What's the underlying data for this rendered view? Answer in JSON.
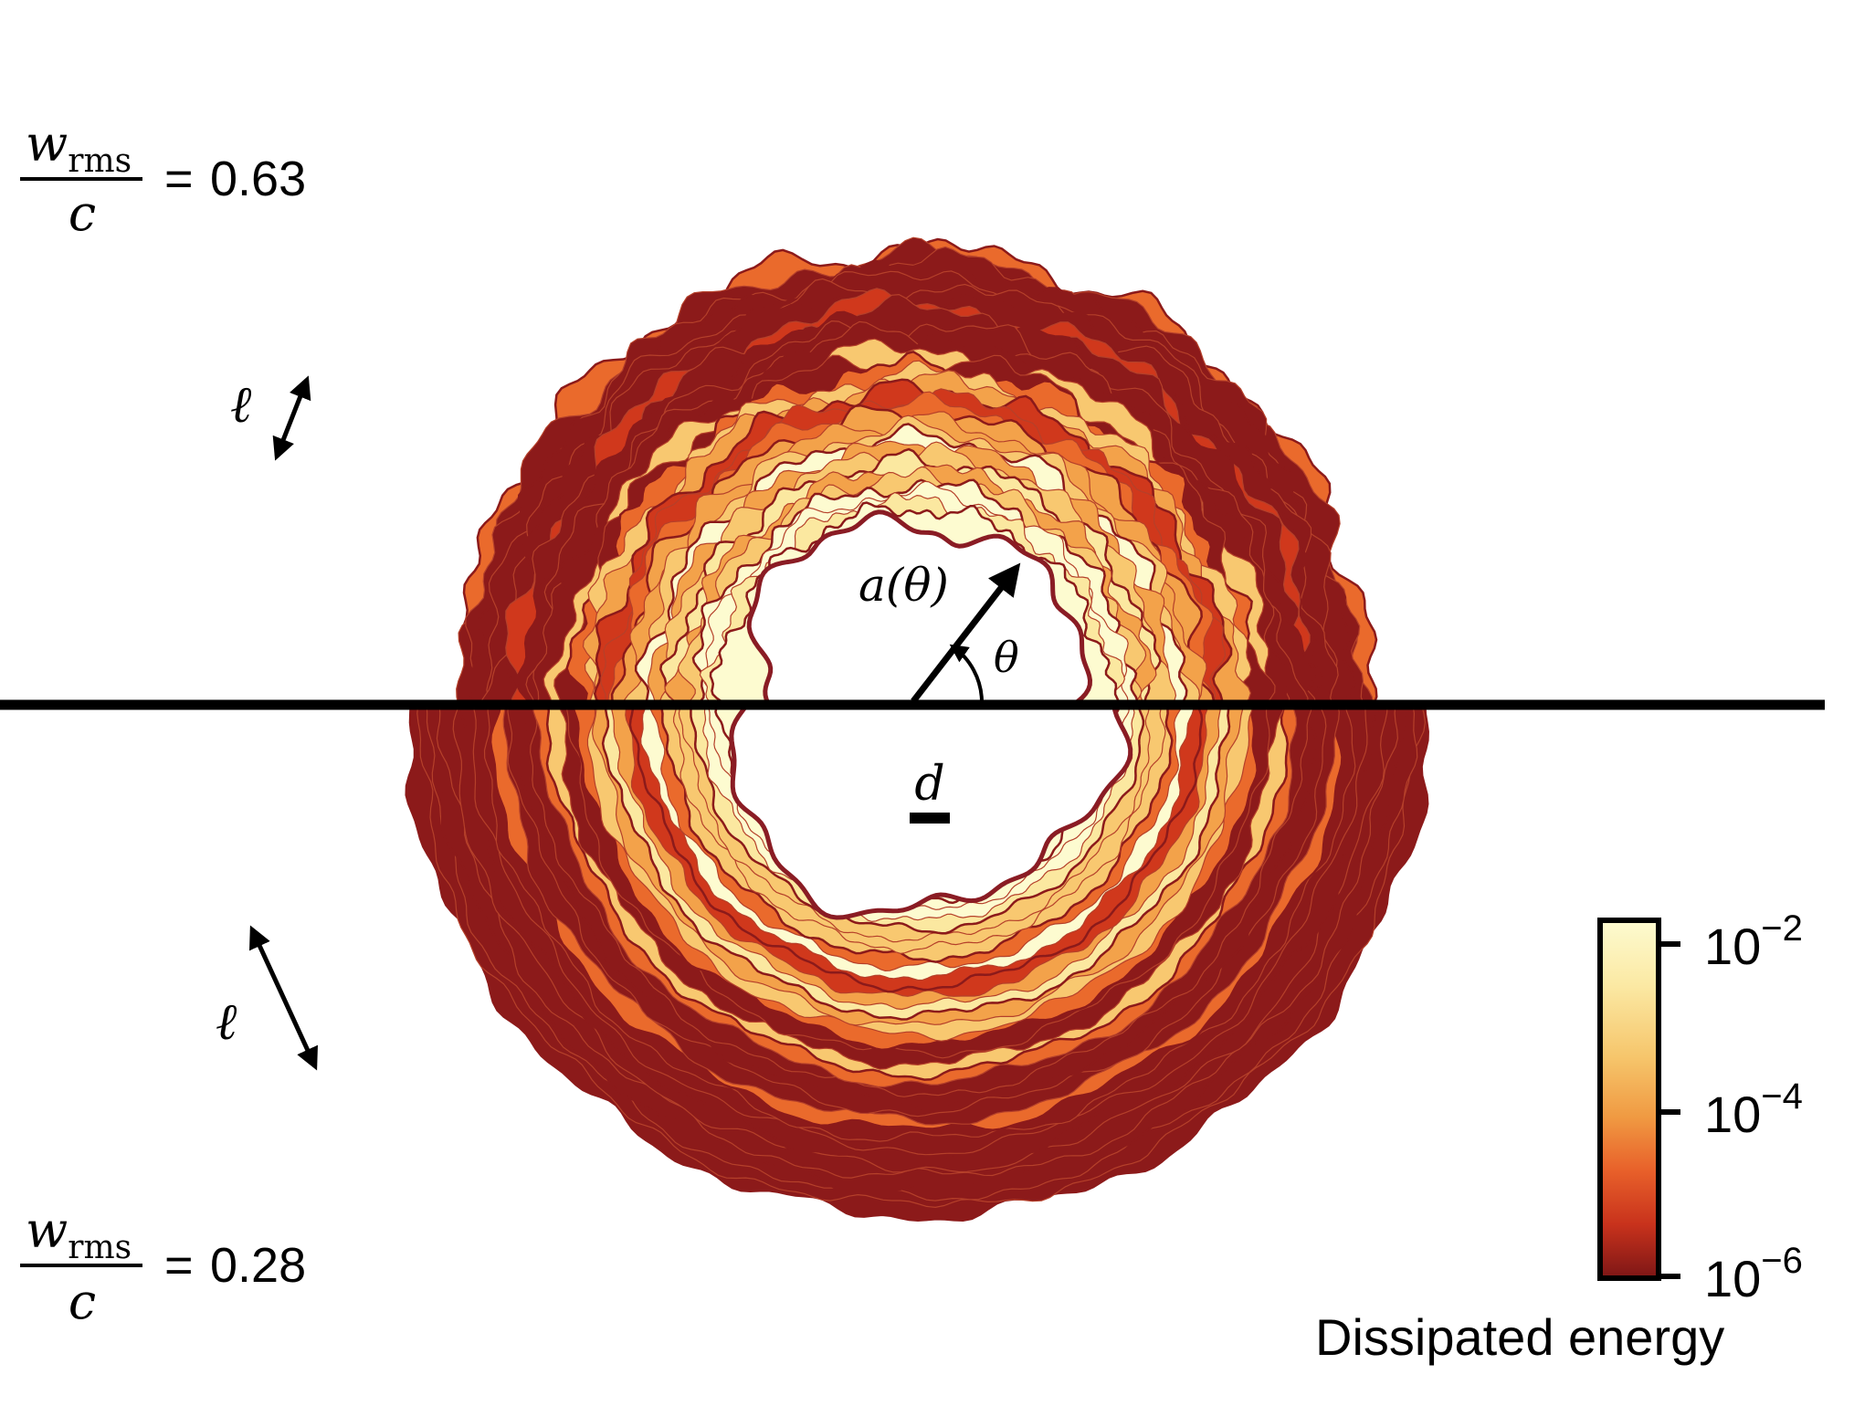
{
  "annotations": {
    "top_ratio": {
      "numerator": "w",
      "subscript": "rms",
      "denominator": "c",
      "equals": "=",
      "value": "0.63"
    },
    "bottom_ratio": {
      "numerator": "w",
      "subscript": "rms",
      "denominator": "c",
      "equals": "=",
      "value": "0.28"
    },
    "ell_top": "ℓ",
    "ell_bottom": "ℓ",
    "radius_label": "a(θ)",
    "angle_label": "θ",
    "scale_label": "d"
  },
  "colorbar": {
    "title": "Dissipated energy",
    "ticks": [
      {
        "base": "10",
        "exp": "−2"
      },
      {
        "base": "10",
        "exp": "−4"
      },
      {
        "base": "10",
        "exp": "−6"
      }
    ],
    "colors": [
      "#fdfbd0",
      "#fbe8a0",
      "#f8c870",
      "#f3a24a",
      "#ea6a2c",
      "#d0381c",
      "#8c1a1a"
    ]
  }
}
